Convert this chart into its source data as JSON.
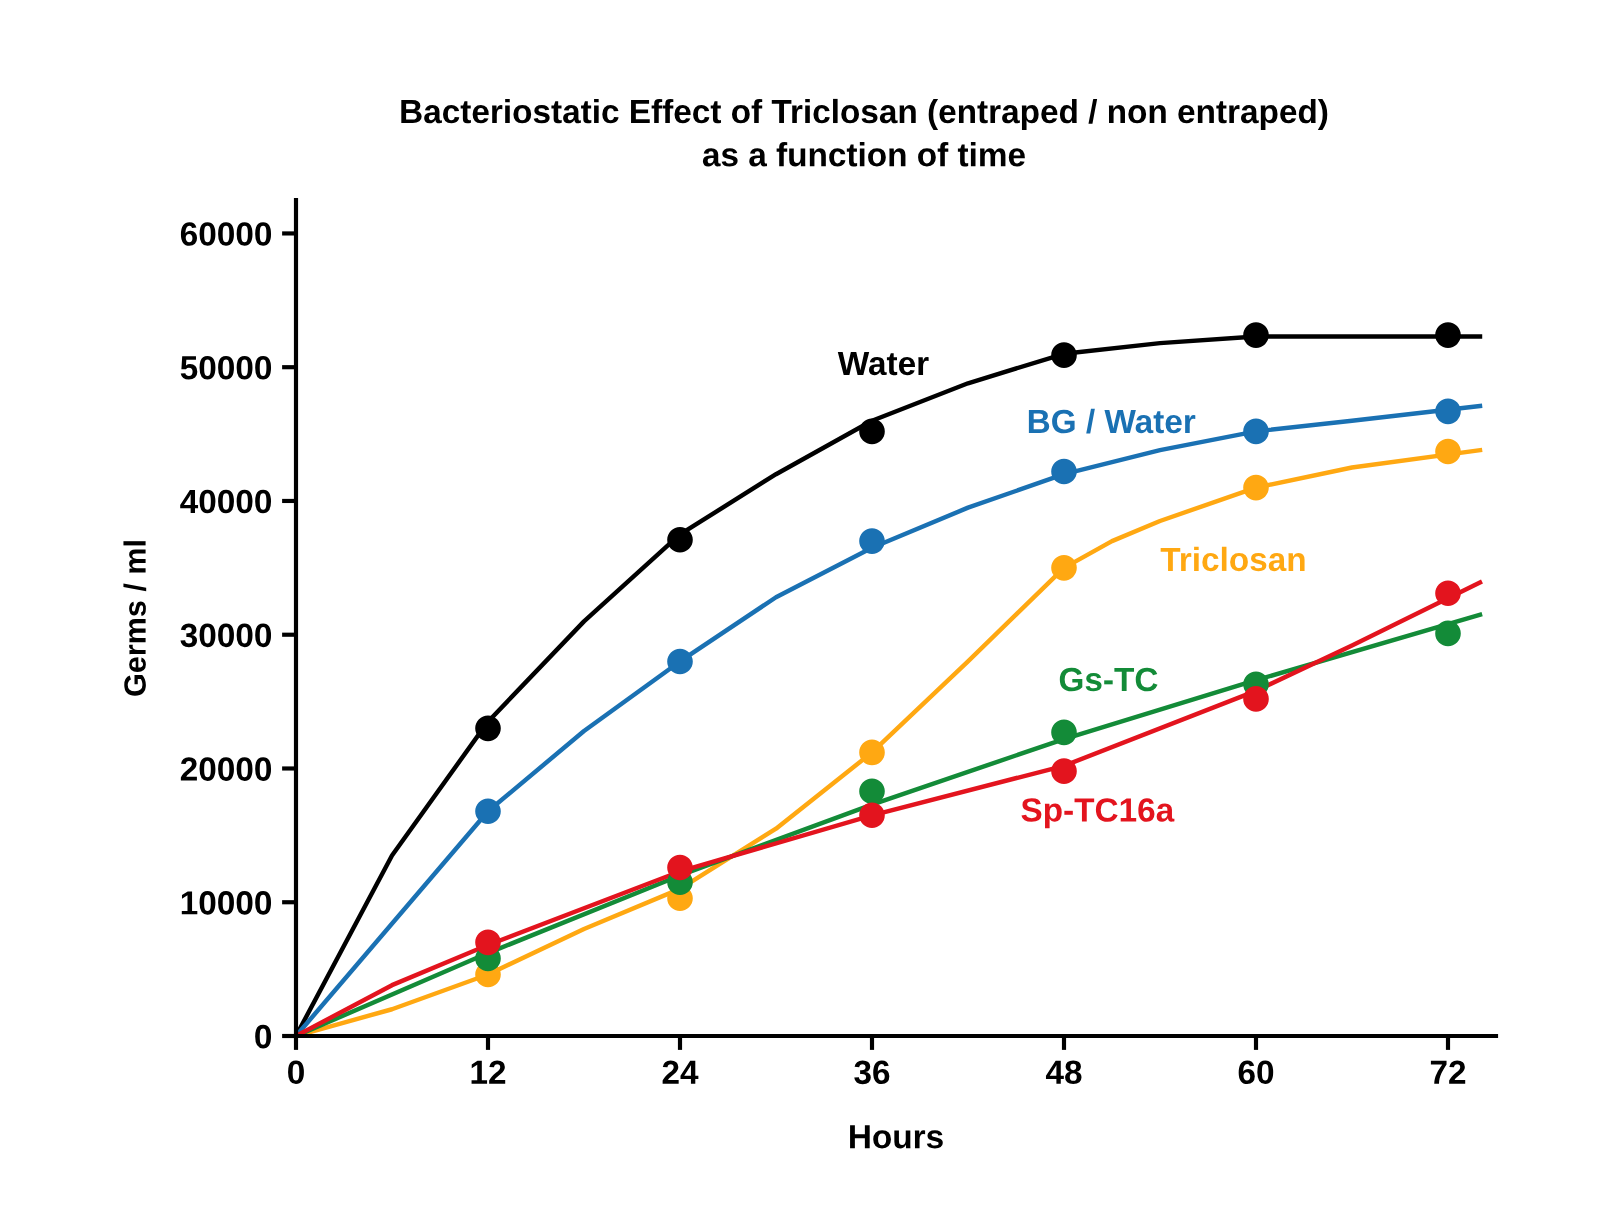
{
  "chart_data": {
    "type": "line",
    "title": "Bacteriostatic Effect of Triclosan (entraped / non entraped)\nas a function of time",
    "xlabel": "Hours",
    "ylabel": "Germs / ml",
    "xlim": [
      0,
      75
    ],
    "xticks": [
      0,
      12,
      24,
      36,
      48,
      60,
      72
    ],
    "ylim": [
      0,
      62500
    ],
    "yticks": [
      0,
      10000,
      20000,
      30000,
      40000,
      50000,
      60000
    ],
    "grid": false,
    "legend": false,
    "series": [
      {
        "marker": "none",
        "color": "#000000",
        "x": [
          0,
          6,
          12,
          18,
          24,
          30,
          36,
          42,
          48,
          54,
          60,
          74
        ],
        "values": [
          0,
          13500,
          23500,
          31000,
          37500,
          42000,
          46000,
          48800,
          51000,
          51800,
          52300,
          52300
        ]
      },
      {
        "marker": "none",
        "color": "#1a71b3",
        "x": [
          0,
          12,
          18,
          24,
          30,
          36,
          42,
          48,
          54,
          60,
          66,
          74
        ],
        "values": [
          0,
          16800,
          22800,
          28000,
          32800,
          36500,
          39500,
          42000,
          43800,
          45200,
          46000,
          47100
        ]
      },
      {
        "marker": "none",
        "color": "#ffa812",
        "x": [
          0,
          6,
          12,
          18,
          24,
          30,
          36,
          42,
          48,
          51,
          54,
          60,
          66,
          74
        ],
        "values": [
          0,
          2000,
          4600,
          8000,
          11000,
          15500,
          21200,
          28000,
          35000,
          37000,
          38500,
          41000,
          42500,
          43800
        ]
      },
      {
        "marker": "none",
        "color": "#138b38",
        "x": [
          0,
          12,
          24,
          36,
          48,
          60,
          74
        ],
        "values": [
          0,
          6200,
          12000,
          17300,
          22200,
          26600,
          31500
        ]
      },
      {
        "marker": "none",
        "color": "#e3141e",
        "x": [
          0,
          6,
          12,
          24,
          36,
          48,
          60,
          66,
          74
        ],
        "values": [
          0,
          3800,
          6800,
          12300,
          16500,
          20200,
          25800,
          29200,
          33900
        ]
      },
      {
        "type": "scatter",
        "name": "Water",
        "marker": "circle",
        "color": "#000000",
        "x": [
          12,
          24,
          36,
          48,
          60,
          72
        ],
        "values": [
          23000,
          37100,
          45200,
          50900,
          52400,
          52400
        ]
      },
      {
        "type": "scatter",
        "name": "BG / Water",
        "marker": "circle",
        "color": "#1a71b3",
        "x": [
          12,
          24,
          36,
          48,
          60,
          72
        ],
        "values": [
          16800,
          28000,
          37000,
          42200,
          45200,
          46700
        ]
      },
      {
        "type": "scatter",
        "name": "Triclosan",
        "marker": "circle",
        "color": "#ffa812",
        "x": [
          12,
          24,
          36,
          48,
          60,
          72
        ],
        "values": [
          4600,
          10300,
          21200,
          35000,
          41000,
          43700
        ]
      },
      {
        "type": "scatter",
        "name": "Gs-TC",
        "marker": "circle",
        "color": "#138b38",
        "x": [
          12,
          24,
          36,
          48,
          60,
          72
        ],
        "values": [
          5800,
          11500,
          18300,
          22700,
          26300,
          30100
        ]
      },
      {
        "type": "scatter",
        "name": "Sp-TC16a",
        "marker": "circle",
        "color": "#e3141e",
        "x": [
          12,
          24,
          36,
          48,
          60,
          72
        ],
        "values": [
          7000,
          12600,
          16500,
          19800,
          25200,
          33100
        ]
      }
    ],
    "line_style": "solid"
  }
}
